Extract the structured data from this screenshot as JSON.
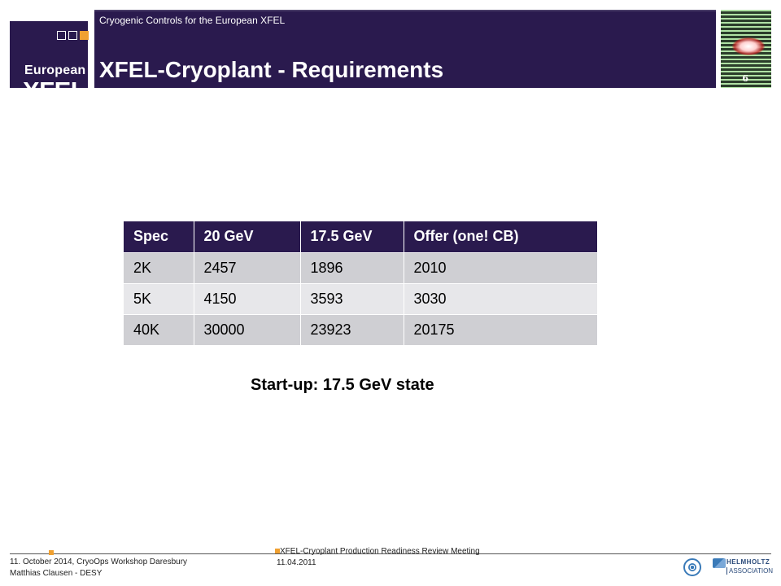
{
  "header": {
    "logo_line1": "European",
    "logo_line2": "XFEL",
    "subtitle": "Cryogenic Controls for the European XFEL",
    "title": "XFEL-Cryoplant - Requirements",
    "page_number": "6"
  },
  "table": {
    "columns": [
      "Spec",
      "20 GeV",
      "17.5 GeV",
      "Offer (one! CB)"
    ],
    "rows": [
      [
        "2K",
        "2457",
        "1896",
        "2010"
      ],
      [
        "5K",
        "4150",
        "3593",
        "3030"
      ],
      [
        "40K",
        "30000",
        "23923",
        "20175"
      ]
    ]
  },
  "note": "Start-up: 17.5 GeV state",
  "footer": {
    "left_line1": "11. October 2014, CryoOps Workshop Daresbury",
    "left_line2": "Matthias Clausen - DESY",
    "mid_line1": "XFEL-Cryoplant Production Readiness Review Meeting",
    "mid_line2": "11.04.2011",
    "helmholtz_line1": "HELMHOLTZ",
    "helmholtz_line2": "ASSOCIATION"
  },
  "colors": {
    "brand_purple": "#2a1a4e",
    "accent_orange": "#f0a030",
    "row_dark": "#cfcfd3",
    "row_light": "#e7e7ea"
  }
}
